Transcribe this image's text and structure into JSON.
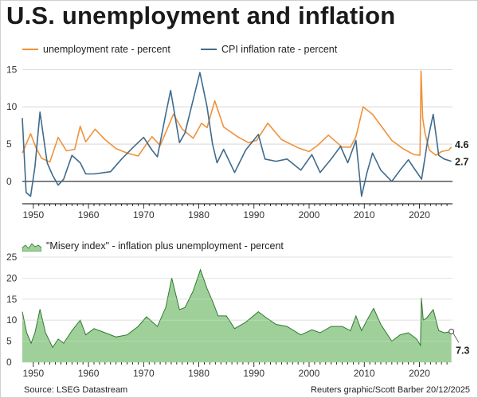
{
  "title": "U.S. unemployment and inflation",
  "legend": {
    "unemployment": "unemployment rate - percent",
    "cpi": "CPI inflation rate - percent",
    "misery": "\"Misery index\" - inflation plus unemployment - percent"
  },
  "colors": {
    "unemployment": "#f0923a",
    "cpi": "#3f6b8c",
    "misery_fill": "#9fd09a",
    "misery_line": "#2e7a2e",
    "grid": "#d0d0d0",
    "zero": "#000000"
  },
  "footer": {
    "source": "Source: LSEG Datastream",
    "credit": "Reuters graphic/Scott Barber 20/12/2025"
  },
  "chart_data": [
    {
      "type": "line",
      "title": "",
      "xlabel": "",
      "ylabel": "",
      "xlim": [
        1948,
        2026
      ],
      "ylim": [
        -3,
        16
      ],
      "x_ticks": [
        1950,
        1960,
        1970,
        1980,
        1990,
        2000,
        2010,
        2020
      ],
      "y_ticks": [
        0,
        5,
        10,
        15
      ],
      "end_labels": [
        "4.6",
        "2.7"
      ],
      "series": [
        {
          "name": "unemployment rate - percent",
          "points": [
            [
              1948,
              3.8
            ],
            [
              1949.5,
              6.4
            ],
            [
              1950.5,
              4.5
            ],
            [
              1951.5,
              3.1
            ],
            [
              1953,
              2.6
            ],
            [
              1954.5,
              5.9
            ],
            [
              1956,
              4.1
            ],
            [
              1957.5,
              4.3
            ],
            [
              1958.5,
              7.4
            ],
            [
              1959.5,
              5.3
            ],
            [
              1961.2,
              7.0
            ],
            [
              1963,
              5.6
            ],
            [
              1965,
              4.4
            ],
            [
              1967,
              3.8
            ],
            [
              1969,
              3.4
            ],
            [
              1970.5,
              5.0
            ],
            [
              1971.5,
              6.0
            ],
            [
              1973,
              4.8
            ],
            [
              1975.4,
              9.0
            ],
            [
              1977,
              7.0
            ],
            [
              1979,
              5.8
            ],
            [
              1980.5,
              7.8
            ],
            [
              1981.5,
              7.2
            ],
            [
              1982.9,
              10.8
            ],
            [
              1984.5,
              7.3
            ],
            [
              1987,
              6.0
            ],
            [
              1989,
              5.2
            ],
            [
              1990.5,
              5.5
            ],
            [
              1992.5,
              7.8
            ],
            [
              1995,
              5.6
            ],
            [
              1998,
              4.5
            ],
            [
              2000,
              4.0
            ],
            [
              2001.5,
              4.8
            ],
            [
              2003.5,
              6.2
            ],
            [
              2006,
              4.6
            ],
            [
              2007.5,
              4.6
            ],
            [
              2008.5,
              6.0
            ],
            [
              2009.8,
              10.0
            ],
            [
              2011.5,
              9.0
            ],
            [
              2013,
              7.5
            ],
            [
              2015,
              5.5
            ],
            [
              2017,
              4.4
            ],
            [
              2019,
              3.6
            ],
            [
              2020.1,
              3.5
            ],
            [
              2020.3,
              14.8
            ],
            [
              2020.6,
              8.5
            ],
            [
              2021,
              6.5
            ],
            [
              2021.8,
              4.2
            ],
            [
              2023,
              3.5
            ],
            [
              2024,
              4.0
            ],
            [
              2025.3,
              4.2
            ],
            [
              2025.8,
              4.6
            ]
          ]
        },
        {
          "name": "CPI inflation rate - percent",
          "points": [
            [
              1948,
              8.5
            ],
            [
              1948.7,
              -1.5
            ],
            [
              1949.5,
              -2.0
            ],
            [
              1950.3,
              2.0
            ],
            [
              1951.2,
              9.3
            ],
            [
              1952.5,
              2.5
            ],
            [
              1953.5,
              0.8
            ],
            [
              1954.5,
              -0.5
            ],
            [
              1955.5,
              0.3
            ],
            [
              1957,
              3.5
            ],
            [
              1958.5,
              2.5
            ],
            [
              1959.5,
              1.0
            ],
            [
              1961,
              1.0
            ],
            [
              1964,
              1.3
            ],
            [
              1966,
              3.0
            ],
            [
              1968,
              4.5
            ],
            [
              1970,
              5.9
            ],
            [
              1971.5,
              4.2
            ],
            [
              1972.5,
              3.3
            ],
            [
              1974,
              9.0
            ],
            [
              1974.9,
              12.2
            ],
            [
              1976.5,
              5.2
            ],
            [
              1977.5,
              6.5
            ],
            [
              1979,
              11.0
            ],
            [
              1980.2,
              14.6
            ],
            [
              1981.5,
              10.0
            ],
            [
              1982.5,
              5.0
            ],
            [
              1983.3,
              2.5
            ],
            [
              1984.5,
              4.3
            ],
            [
              1986.5,
              1.2
            ],
            [
              1988.5,
              4.2
            ],
            [
              1990.8,
              6.3
            ],
            [
              1992,
              3.0
            ],
            [
              1994,
              2.7
            ],
            [
              1996,
              3.0
            ],
            [
              1998.5,
              1.5
            ],
            [
              2000.5,
              3.6
            ],
            [
              2002,
              1.2
            ],
            [
              2004,
              3.0
            ],
            [
              2005.7,
              4.7
            ],
            [
              2007,
              2.5
            ],
            [
              2008.5,
              5.5
            ],
            [
              2009.5,
              -2.0
            ],
            [
              2010.5,
              1.2
            ],
            [
              2011.5,
              3.8
            ],
            [
              2013,
              1.5
            ],
            [
              2015,
              0.0
            ],
            [
              2016.5,
              1.5
            ],
            [
              2018,
              2.9
            ],
            [
              2019,
              1.8
            ],
            [
              2020.4,
              0.3
            ],
            [
              2021.5,
              5.5
            ],
            [
              2022.5,
              9.0
            ],
            [
              2023.5,
              3.5
            ],
            [
              2024.5,
              3.0
            ],
            [
              2025.8,
              2.7
            ]
          ]
        }
      ]
    },
    {
      "type": "area",
      "title": "",
      "xlabel": "",
      "ylabel": "",
      "xlim": [
        1948,
        2026
      ],
      "ylim": [
        0,
        25
      ],
      "x_ticks": [
        1950,
        1960,
        1970,
        1980,
        1990,
        2000,
        2010,
        2020
      ],
      "y_ticks": [
        0,
        5,
        10,
        15,
        20,
        25
      ],
      "end_labels": [
        "7.3"
      ],
      "series": [
        {
          "name": "\"Misery index\" - inflation plus unemployment - percent",
          "points": [
            [
              1948,
              12.0
            ],
            [
              1948.8,
              7.0
            ],
            [
              1949.6,
              4.5
            ],
            [
              1950.3,
              7.0
            ],
            [
              1951.2,
              12.6
            ],
            [
              1952.2,
              7.0
            ],
            [
              1953.5,
              3.5
            ],
            [
              1954.5,
              5.5
            ],
            [
              1955.5,
              4.5
            ],
            [
              1957,
              7.5
            ],
            [
              1958.5,
              10.0
            ],
            [
              1959.5,
              6.5
            ],
            [
              1961,
              8.0
            ],
            [
              1963,
              7.0
            ],
            [
              1965,
              6.0
            ],
            [
              1967,
              6.5
            ],
            [
              1969,
              8.5
            ],
            [
              1970.5,
              10.8
            ],
            [
              1972.5,
              8.5
            ],
            [
              1974,
              13.0
            ],
            [
              1975.1,
              20.0
            ],
            [
              1976.5,
              12.5
            ],
            [
              1977.5,
              13.0
            ],
            [
              1979,
              17.0
            ],
            [
              1980.3,
              22.0
            ],
            [
              1981.5,
              17.5
            ],
            [
              1982.5,
              14.5
            ],
            [
              1983.5,
              11.0
            ],
            [
              1985,
              11.0
            ],
            [
              1986.5,
              8.0
            ],
            [
              1988.5,
              9.5
            ],
            [
              1990.8,
              12.0
            ],
            [
              1992,
              10.8
            ],
            [
              1994,
              9.0
            ],
            [
              1996,
              8.5
            ],
            [
              1998.5,
              6.5
            ],
            [
              2000.5,
              7.7
            ],
            [
              2002,
              7.0
            ],
            [
              2004,
              8.5
            ],
            [
              2006,
              8.5
            ],
            [
              2007.5,
              7.5
            ],
            [
              2008.5,
              11.0
            ],
            [
              2009.5,
              7.5
            ],
            [
              2010.5,
              10.0
            ],
            [
              2011.7,
              12.8
            ],
            [
              2013,
              9.0
            ],
            [
              2015,
              5.0
            ],
            [
              2016.5,
              6.5
            ],
            [
              2018,
              7.0
            ],
            [
              2019.5,
              5.5
            ],
            [
              2020.2,
              4.0
            ],
            [
              2020.35,
              15.3
            ],
            [
              2020.7,
              10.0
            ],
            [
              2021.3,
              10.5
            ],
            [
              2022.5,
              12.5
            ],
            [
              2023.5,
              7.5
            ],
            [
              2024.5,
              7.0
            ],
            [
              2025.8,
              7.3
            ]
          ]
        }
      ]
    }
  ]
}
